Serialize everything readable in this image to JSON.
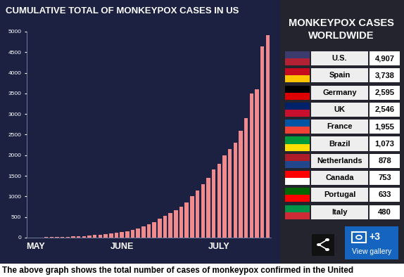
{
  "chart_data": {
    "type": "bar",
    "title": "CUMULATIVE TOTAL OF MONKEYPOX CASES IN US",
    "categories": [
      null,
      "MAY",
      null,
      null,
      null,
      null,
      null,
      null,
      null,
      null,
      null,
      null,
      null,
      null,
      null,
      null,
      null,
      "JUNE",
      null,
      null,
      null,
      null,
      null,
      null,
      null,
      null,
      null,
      null,
      null,
      null,
      null,
      null,
      null,
      null,
      null,
      "JULY",
      null,
      null,
      null,
      null,
      null,
      null,
      null,
      null,
      null
    ],
    "values": [
      5,
      6,
      8,
      10,
      12,
      15,
      20,
      25,
      30,
      35,
      40,
      50,
      60,
      70,
      85,
      100,
      120,
      140,
      160,
      190,
      230,
      280,
      330,
      380,
      460,
      530,
      600,
      670,
      750,
      850,
      1000,
      1150,
      1300,
      1450,
      1650,
      1800,
      2000,
      2150,
      2300,
      2600,
      2900,
      3500,
      3600,
      4650,
      4907
    ],
    "color": "#f08a8c",
    "ylim": [
      0,
      5000
    ],
    "yticks": [
      0,
      500,
      1000,
      1500,
      2000,
      2500,
      3000,
      3500,
      4000,
      4500,
      5000
    ],
    "grid": false
  },
  "table": {
    "title": "MONKEYPOX CASES WORLDWIDE",
    "rows": [
      {
        "country": "U.S.",
        "cases": "4,907"
      },
      {
        "country": "Spain",
        "cases": "3,738"
      },
      {
        "country": "Germany",
        "cases": "2,595"
      },
      {
        "country": "UK",
        "cases": "2,546"
      },
      {
        "country": "France",
        "cases": "1,955"
      },
      {
        "country": "Brazil",
        "cases": "1,073"
      },
      {
        "country": "Netherlands",
        "cases": "878"
      },
      {
        "country": "Canada",
        "cases": "753"
      },
      {
        "country": "Portugal",
        "cases": "633"
      },
      {
        "country": "Italy",
        "cases": "480"
      }
    ]
  },
  "caption": "The above graph shows the total number of cases of monkeypox confirmed in the United",
  "gallery": {
    "count": "+3",
    "label": "View gallery"
  }
}
